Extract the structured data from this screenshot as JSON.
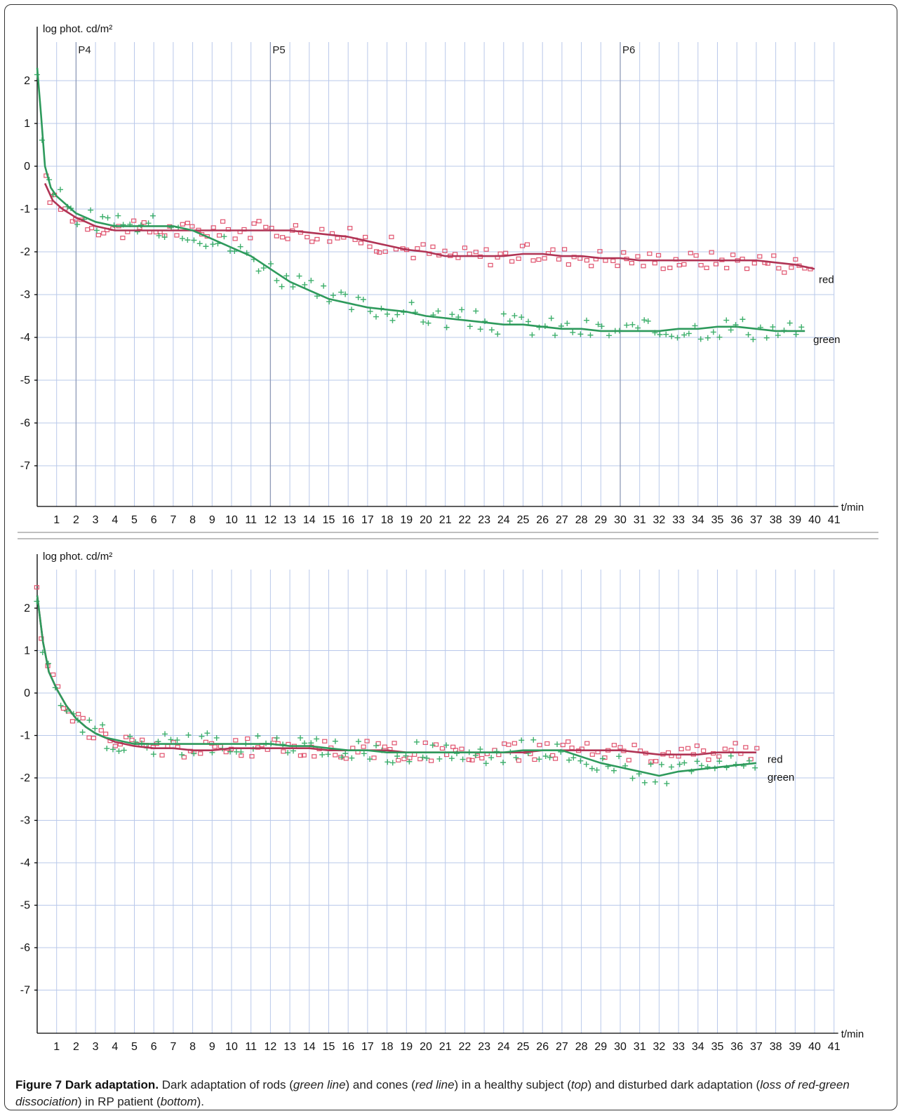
{
  "chart_data": [
    {
      "type": "line+scatter",
      "ylabel": "log phot. cd/m²",
      "xlabel": "t/min",
      "xlim": [
        0,
        41
      ],
      "ylim": [
        -8,
        3
      ],
      "xticks": [
        1,
        2,
        3,
        4,
        5,
        6,
        7,
        8,
        9,
        10,
        11,
        12,
        13,
        14,
        15,
        16,
        17,
        18,
        19,
        20,
        21,
        22,
        23,
        24,
        25,
        26,
        27,
        28,
        29,
        30,
        31,
        32,
        33,
        34,
        35,
        36,
        37,
        38,
        39,
        40,
        41
      ],
      "yticks": [
        2,
        1,
        0,
        -1,
        -2,
        -3,
        -4,
        -5,
        -6,
        -7
      ],
      "markers": [
        {
          "label": "P4",
          "x": 2
        },
        {
          "label": "P5",
          "x": 12
        },
        {
          "label": "P6",
          "x": 30
        }
      ],
      "grid": true,
      "colors": {
        "red": "#b03455",
        "red_points": "#e0536e",
        "green": "#2e9a5c",
        "green_points": "#3daf6b",
        "grid": "#b9c8ea"
      },
      "series": [
        {
          "name": "red",
          "x": [
            0.4,
            0.8,
            1.3,
            2,
            3,
            4,
            5,
            6,
            7,
            8,
            9,
            10,
            11,
            12,
            13,
            14,
            15,
            16,
            17,
            18,
            19,
            20,
            21,
            22,
            23,
            24,
            25,
            26,
            27,
            28,
            29,
            30,
            31,
            32,
            33,
            34,
            35,
            36,
            37,
            38,
            39,
            40
          ],
          "y": [
            -0.4,
            -0.8,
            -1.0,
            -1.2,
            -1.4,
            -1.5,
            -1.5,
            -1.5,
            -1.5,
            -1.5,
            -1.5,
            -1.5,
            -1.5,
            -1.5,
            -1.5,
            -1.55,
            -1.6,
            -1.65,
            -1.75,
            -1.85,
            -1.95,
            -2.0,
            -2.1,
            -2.1,
            -2.1,
            -2.1,
            -2.05,
            -2.05,
            -2.1,
            -2.1,
            -2.15,
            -2.15,
            -2.2,
            -2.2,
            -2.2,
            -2.2,
            -2.2,
            -2.2,
            -2.2,
            -2.25,
            -2.3,
            -2.4
          ]
        },
        {
          "name": "green",
          "x": [
            0,
            0.2,
            0.4,
            0.7,
            1,
            1.5,
            2,
            3,
            4,
            5,
            6,
            7,
            8,
            9,
            10,
            11,
            12,
            13,
            14,
            15,
            16,
            17,
            18,
            19,
            20,
            21,
            22,
            23,
            24,
            25,
            26,
            27,
            28,
            29,
            30,
            31,
            32,
            33,
            34,
            35,
            36,
            37,
            38,
            39,
            39.5
          ],
          "y": [
            2.3,
            1.2,
            0.0,
            -0.5,
            -0.7,
            -0.9,
            -1.1,
            -1.3,
            -1.4,
            -1.4,
            -1.4,
            -1.4,
            -1.5,
            -1.7,
            -1.9,
            -2.1,
            -2.4,
            -2.7,
            -2.9,
            -3.1,
            -3.2,
            -3.3,
            -3.35,
            -3.4,
            -3.5,
            -3.55,
            -3.6,
            -3.65,
            -3.7,
            -3.7,
            -3.75,
            -3.8,
            -3.8,
            -3.85,
            -3.85,
            -3.85,
            -3.85,
            -3.8,
            -3.8,
            -3.75,
            -3.75,
            -3.8,
            -3.85,
            -3.85,
            -3.85
          ]
        }
      ],
      "series_labels": [
        "red",
        "green"
      ]
    },
    {
      "type": "line+scatter",
      "ylabel": "log phot. cd/m²",
      "xlabel": "t/min",
      "xlim": [
        0,
        41
      ],
      "ylim": [
        -8,
        3
      ],
      "xticks": [
        1,
        2,
        3,
        4,
        5,
        6,
        7,
        8,
        9,
        10,
        11,
        12,
        13,
        14,
        15,
        16,
        17,
        18,
        19,
        20,
        21,
        22,
        23,
        24,
        25,
        26,
        27,
        28,
        29,
        30,
        31,
        32,
        33,
        34,
        35,
        36,
        37,
        38,
        39,
        40,
        41
      ],
      "yticks": [
        2,
        1,
        0,
        -1,
        -2,
        -3,
        -4,
        -5,
        -6,
        -7
      ],
      "grid": true,
      "colors": {
        "red": "#b03455",
        "red_points": "#e0536e",
        "green": "#2e9a5c",
        "green_points": "#3daf6b",
        "grid": "#b9c8ea"
      },
      "series": [
        {
          "name": "red",
          "x": [
            0,
            0.3,
            0.6,
            1,
            1.5,
            2,
            2.5,
            3,
            3.5,
            4,
            5,
            6,
            7,
            8,
            9,
            10,
            11,
            12,
            13,
            14,
            15,
            16,
            17,
            18,
            19,
            20,
            21,
            22,
            23,
            24,
            25,
            26,
            27,
            28,
            29,
            30,
            31,
            32,
            33,
            34,
            35,
            36,
            37
          ],
          "y": [
            2.3,
            1.2,
            0.5,
            0.1,
            -0.3,
            -0.6,
            -0.8,
            -0.95,
            -1.05,
            -1.15,
            -1.25,
            -1.3,
            -1.3,
            -1.35,
            -1.35,
            -1.3,
            -1.3,
            -1.3,
            -1.3,
            -1.3,
            -1.35,
            -1.35,
            -1.35,
            -1.35,
            -1.4,
            -1.4,
            -1.4,
            -1.4,
            -1.4,
            -1.4,
            -1.4,
            -1.35,
            -1.35,
            -1.35,
            -1.35,
            -1.35,
            -1.4,
            -1.45,
            -1.45,
            -1.45,
            -1.4,
            -1.4,
            -1.4
          ]
        },
        {
          "name": "green",
          "x": [
            0,
            0.3,
            0.6,
            1,
            1.5,
            2,
            2.5,
            3,
            3.5,
            4,
            5,
            6,
            7,
            8,
            9,
            10,
            11,
            12,
            13,
            14,
            15,
            16,
            17,
            18,
            19,
            20,
            21,
            22,
            23,
            24,
            25,
            26,
            27,
            28,
            29,
            30,
            31,
            32,
            33,
            34,
            35,
            36,
            37
          ],
          "y": [
            2.3,
            1.2,
            0.5,
            0.1,
            -0.3,
            -0.6,
            -0.8,
            -0.95,
            -1.05,
            -1.1,
            -1.2,
            -1.2,
            -1.2,
            -1.2,
            -1.2,
            -1.2,
            -1.2,
            -1.2,
            -1.25,
            -1.25,
            -1.3,
            -1.35,
            -1.35,
            -1.4,
            -1.4,
            -1.4,
            -1.4,
            -1.4,
            -1.4,
            -1.4,
            -1.35,
            -1.35,
            -1.35,
            -1.5,
            -1.65,
            -1.75,
            -1.85,
            -1.95,
            -1.85,
            -1.8,
            -1.75,
            -1.7,
            -1.65
          ]
        }
      ],
      "series_labels": [
        "red",
        "green"
      ]
    }
  ],
  "caption": {
    "title": "Figure 7 Dark adaptation.",
    "text_before_green": " Dark adaptation of rods (",
    "green_line": "green line",
    "text_before_red": ") and cones (",
    "red_line": "red line",
    "text_before_top": ") in a healthy subject (",
    "top": "top",
    "text_before_loss": ") and disturbed dark adaptation (",
    "loss": "loss of red-green dissociation",
    "text_before_bottom": ") in RP patient (",
    "bottom": "bottom",
    "text_end": ")."
  }
}
